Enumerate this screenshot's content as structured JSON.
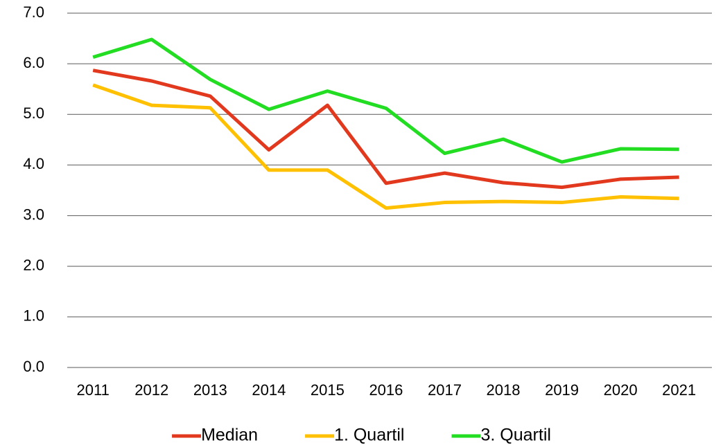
{
  "chart_data": {
    "type": "line",
    "categories": [
      "2011",
      "2012",
      "2013",
      "2014",
      "2015",
      "2016",
      "2017",
      "2018",
      "2019",
      "2020",
      "2021"
    ],
    "series": [
      {
        "name": "Median",
        "color": "#e2381e",
        "values": [
          5.87,
          5.66,
          5.36,
          4.3,
          5.18,
          3.64,
          3.84,
          3.65,
          3.56,
          3.72,
          3.76
        ]
      },
      {
        "name": "1. Quartil",
        "color": "#ffc000",
        "values": [
          5.58,
          5.18,
          5.13,
          3.9,
          3.9,
          3.15,
          3.26,
          3.28,
          3.26,
          3.37,
          3.34
        ]
      },
      {
        "name": "3. Quartil",
        "color": "#22dd22",
        "values": [
          6.13,
          6.48,
          5.69,
          5.1,
          5.46,
          5.12,
          4.23,
          4.51,
          4.06,
          4.32,
          4.31
        ]
      }
    ],
    "ylim": [
      0,
      7
    ],
    "yticks": [
      {
        "value": 0,
        "label": "0.0"
      },
      {
        "value": 1,
        "label": "1.0"
      },
      {
        "value": 2,
        "label": "2.0"
      },
      {
        "value": 3,
        "label": "3.0"
      },
      {
        "value": 4,
        "label": "4.0"
      },
      {
        "value": 5,
        "label": "5.0"
      },
      {
        "value": 6,
        "label": "6.0"
      },
      {
        "value": 7,
        "label": "7.0"
      }
    ],
    "grid": true,
    "legend": "bottom"
  }
}
